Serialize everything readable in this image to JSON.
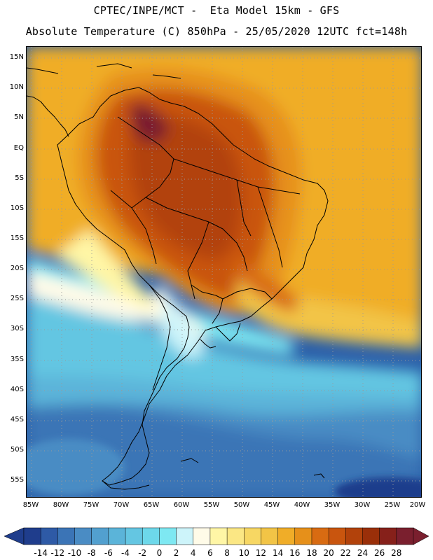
{
  "header": {
    "line1": "CPTEC/INPE/MCT -  Eta Model 15km - GFS",
    "line2": "Absolute Temperature (C) 850hPa - 25/05/2020 12UTC fct=148h"
  },
  "map": {
    "lat_labels": [
      "15N",
      "10N",
      "5N",
      "EQ",
      "5S",
      "10S",
      "15S",
      "20S",
      "25S",
      "30S",
      "35S",
      "40S",
      "45S",
      "50S",
      "55S"
    ],
    "lon_labels": [
      "85W",
      "80W",
      "75W",
      "70W",
      "65W",
      "60W",
      "55W",
      "50W",
      "45W",
      "40W",
      "35W",
      "30W",
      "25W",
      "20W"
    ],
    "field": "850hPa temperature"
  },
  "colorbar": {
    "ticks": [
      "-14",
      "-12",
      "-10",
      "-8",
      "-6",
      "-4",
      "-2",
      "0",
      "2",
      "4",
      "6",
      "8",
      "10",
      "12",
      "14",
      "16",
      "18",
      "20",
      "22",
      "24",
      "26",
      "28"
    ],
    "colors": [
      "#1f3d8c",
      "#2e5aa6",
      "#3b74b6",
      "#4a8cc4",
      "#52a0cf",
      "#5bb4d9",
      "#64c6e2",
      "#6dd8ea",
      "#7ee8f2",
      "#cdf4fa",
      "#fffbe8",
      "#fff6a6",
      "#fbe784",
      "#f7d763",
      "#f2c446",
      "#f0ad28",
      "#e6901a",
      "#d86b12",
      "#c9550e",
      "#b2420b",
      "#9a2f09",
      "#86201a",
      "#7a1f2e"
    ]
  }
}
